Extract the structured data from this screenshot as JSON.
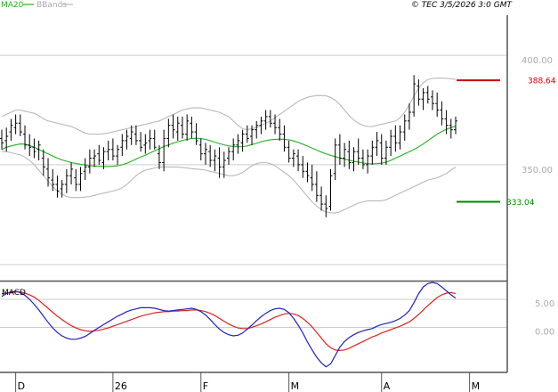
{
  "header": {
    "legend_ma": "MA20",
    "legend_bb": "BBands",
    "copyright": "© TEC 3/5/2026 3:0 GMT"
  },
  "colors": {
    "price_bars": "#000000",
    "ma": "#20b020",
    "bands": "#b8b8b8",
    "resistance": "#cc0000",
    "support": "#008800",
    "macd_line": "#2222bb",
    "signal_line": "#dd2222",
    "grid": "#cccccc",
    "frame": "#555555"
  },
  "chart_data": [
    {
      "type": "ohlc",
      "name": "price",
      "y_ticks": [
        {
          "value": 400,
          "label": "400.00"
        },
        {
          "value": 350,
          "label": "350.00"
        }
      ],
      "ylim": [
        297,
        418
      ],
      "levels": [
        {
          "name": "resistance",
          "value": 388.64,
          "label": "388.64"
        },
        {
          "name": "support",
          "value": 333.04,
          "label": "333.04"
        }
      ],
      "x_labels": [
        {
          "index": 3,
          "label": "D"
        },
        {
          "index": 24,
          "label": "26"
        },
        {
          "index": 43,
          "label": "F"
        },
        {
          "index": 62,
          "label": "M"
        },
        {
          "index": 82,
          "label": "A"
        },
        {
          "index": 101,
          "label": "M"
        }
      ],
      "ohlc": [
        [
          362.0,
          366.0,
          357.0,
          360.0
        ],
        [
          361.0,
          367.0,
          356.0,
          363.0
        ],
        [
          365.0,
          371.0,
          361.0,
          368.0
        ],
        [
          367.0,
          373.0,
          364.0,
          369.0
        ],
        [
          369.0,
          373.0,
          363.0,
          365.0
        ],
        [
          364.0,
          368.0,
          357.0,
          359.0
        ],
        [
          359.0,
          364.0,
          354.0,
          358.0
        ],
        [
          358.0,
          362.0,
          353.0,
          356.0
        ],
        [
          357.0,
          361.0,
          352.0,
          359.0
        ],
        [
          353.0,
          357.0,
          345.0,
          349.0
        ],
        [
          348.0,
          353.0,
          340.0,
          344.0
        ],
        [
          343.0,
          348.0,
          338.0,
          341.0
        ],
        [
          341.0,
          345.0,
          335.0,
          338.0
        ],
        [
          339.0,
          343.0,
          335.0,
          341.0
        ],
        [
          341.0,
          348.0,
          337.0,
          345.0
        ],
        [
          345.0,
          351.0,
          341.0,
          348.0
        ],
        [
          344.0,
          348.0,
          338.0,
          341.0
        ],
        [
          341.0,
          349.0,
          338.0,
          346.0
        ],
        [
          347.0,
          353.0,
          343.0,
          349.0
        ],
        [
          349.0,
          357.0,
          346.0,
          353.0
        ],
        [
          353.0,
          357.0,
          349.0,
          354.0
        ],
        [
          355.0,
          359.0,
          350.0,
          352.0
        ],
        [
          351.0,
          358.0,
          348.0,
          356.0
        ],
        [
          356.0,
          361.0,
          352.0,
          357.0
        ],
        [
          357.0,
          362.0,
          352.0,
          354.0
        ],
        [
          354.0,
          359.0,
          350.0,
          357.0
        ],
        [
          358.0,
          364.0,
          354.0,
          361.0
        ],
        [
          361.0,
          366.0,
          357.0,
          363.0
        ],
        [
          362.0,
          368.0,
          359.0,
          365.0
        ],
        [
          364.0,
          368.0,
          359.0,
          361.0
        ],
        [
          361.0,
          365.0,
          356.0,
          358.0
        ],
        [
          359.0,
          364.0,
          355.0,
          360.0
        ],
        [
          361.0,
          366.0,
          357.0,
          362.0
        ],
        [
          362.0,
          366.0,
          357.0,
          358.0
        ],
        [
          355.0,
          359.0,
          348.0,
          351.0
        ],
        [
          351.0,
          366.0,
          347.0,
          362.0
        ],
        [
          362.0,
          371.0,
          358.0,
          368.0
        ],
        [
          368.0,
          373.0,
          362.0,
          366.0
        ],
        [
          365.0,
          372.0,
          361.0,
          369.0
        ],
        [
          368.0,
          372.0,
          362.0,
          364.0
        ],
        [
          364.0,
          373.0,
          361.0,
          370.0
        ],
        [
          369.0,
          372.0,
          362.0,
          365.0
        ],
        [
          365.0,
          369.0,
          359.0,
          361.0
        ],
        [
          359.0,
          362.0,
          352.0,
          355.0
        ],
        [
          355.0,
          360.0,
          350.0,
          357.0
        ],
        [
          356.0,
          359.0,
          349.0,
          352.0
        ],
        [
          352.0,
          357.0,
          347.0,
          354.0
        ],
        [
          353.0,
          358.0,
          344.0,
          349.0
        ],
        [
          349.0,
          356.0,
          344.0,
          352.0
        ],
        [
          353.0,
          358.0,
          350.0,
          356.0
        ],
        [
          356.0,
          362.0,
          352.0,
          359.0
        ],
        [
          359.0,
          364.0,
          355.0,
          361.0
        ],
        [
          360.0,
          366.0,
          356.0,
          364.0
        ],
        [
          364.0,
          368.0,
          360.0,
          362.0
        ],
        [
          363.0,
          368.0,
          359.0,
          366.0
        ],
        [
          366.0,
          370.0,
          362.0,
          368.0
        ],
        [
          368.0,
          372.0,
          364.0,
          370.0
        ],
        [
          370.0,
          375.0,
          366.0,
          372.0
        ],
        [
          372.0,
          375.0,
          367.0,
          369.0
        ],
        [
          369.0,
          373.0,
          364.0,
          367.0
        ],
        [
          367.0,
          371.0,
          361.0,
          364.0
        ],
        [
          364.0,
          368.0,
          356.0,
          358.0
        ],
        [
          358.0,
          361.0,
          351.0,
          353.0
        ],
        [
          353.0,
          357.0,
          349.0,
          355.0
        ],
        [
          354.0,
          357.0,
          347.0,
          350.0
        ],
        [
          350.0,
          354.0,
          344.0,
          347.0
        ],
        [
          347.0,
          351.0,
          342.0,
          345.0
        ],
        [
          344.0,
          350.0,
          338.0,
          341.0
        ],
        [
          341.0,
          347.0,
          333.0,
          336.0
        ],
        [
          336.0,
          340.0,
          329.0,
          332.0
        ],
        [
          332.0,
          336.0,
          326.0,
          330.0
        ],
        [
          331.0,
          348.0,
          329.0,
          345.0
        ],
        [
          346.0,
          362.0,
          343.0,
          359.0
        ],
        [
          359.0,
          364.0,
          350.0,
          353.0
        ],
        [
          353.0,
          360.0,
          349.0,
          357.0
        ],
        [
          356.0,
          361.0,
          348.0,
          351.0
        ],
        [
          351.0,
          358.0,
          347.0,
          356.0
        ],
        [
          356.0,
          362.0,
          350.0,
          353.0
        ],
        [
          353.0,
          357.0,
          348.0,
          350.0
        ],
        [
          350.0,
          357.0,
          346.0,
          354.0
        ],
        [
          354.0,
          361.0,
          350.0,
          358.0
        ],
        [
          358.0,
          365.0,
          354.0,
          361.0
        ],
        [
          360.0,
          364.0,
          350.0,
          353.0
        ],
        [
          353.0,
          361.0,
          350.0,
          358.0
        ],
        [
          358.0,
          366.0,
          354.0,
          363.0
        ],
        [
          363.0,
          368.0,
          356.0,
          360.0
        ],
        [
          360.0,
          368.0,
          357.0,
          365.0
        ],
        [
          365.0,
          373.0,
          361.0,
          370.0
        ],
        [
          370.0,
          378.0,
          366.0,
          374.0
        ],
        [
          374.0,
          391.0,
          372.0,
          387.0
        ],
        [
          386.0,
          389.0,
          377.0,
          380.0
        ],
        [
          380.0,
          385.0,
          375.0,
          383.0
        ],
        [
          383.0,
          386.0,
          378.0,
          380.0
        ],
        [
          381.0,
          384.0,
          375.0,
          378.0
        ],
        [
          378.0,
          383.0,
          372.0,
          375.0
        ],
        [
          375.0,
          379.0,
          368.0,
          371.0
        ],
        [
          371.0,
          375.0,
          364.0,
          368.0
        ],
        [
          368.0,
          371.0,
          362.0,
          366.0
        ],
        [
          366.0,
          372.0,
          364.0,
          370.0
        ]
      ],
      "ma20": [
        357.0,
        358.0,
        358.6,
        359.1,
        359.5,
        359.4,
        358.8,
        358.0,
        357.0,
        356.0,
        355.0,
        354.0,
        353.0,
        352.2,
        351.6,
        351.0,
        350.6,
        350.2,
        349.9,
        349.6,
        349.4,
        349.3,
        349.2,
        349.2,
        349.3,
        349.5,
        350.0,
        350.7,
        351.6,
        352.6,
        353.5,
        354.4,
        355.4,
        356.4,
        357.3,
        358.3,
        359.0,
        359.9,
        360.5,
        361.1,
        361.6,
        362.0,
        362.1,
        362.0,
        361.6,
        361.0,
        360.3,
        359.7,
        359.1,
        358.6,
        358.3,
        358.2,
        358.3,
        358.6,
        359.2,
        359.8,
        360.5,
        361.0,
        361.4,
        361.6,
        361.7,
        361.6,
        361.4,
        360.9,
        360.2,
        359.4,
        358.5,
        357.6,
        356.7,
        355.8,
        355.0,
        354.3,
        353.7,
        353.1,
        352.6,
        352.1,
        351.6,
        351.2,
        350.8,
        350.5,
        350.4,
        350.5,
        350.7,
        351.2,
        352.0,
        353.0,
        354.0,
        355.0,
        356.0,
        357.0,
        358.2,
        359.5,
        361.0,
        362.5,
        364.0,
        365.2,
        366.2,
        367.0,
        367.6
      ],
      "bb_upper": [
        372.0,
        373.0,
        374.0,
        375.0,
        375.0,
        374.5,
        374.0,
        373.5,
        372.5,
        371.0,
        370.0,
        369.5,
        369.0,
        368.5,
        368.0,
        367.5,
        366.5,
        365.5,
        364.5,
        364.0,
        364.0,
        364.0,
        364.2,
        364.5,
        365.0,
        365.5,
        366.0,
        366.5,
        367.0,
        367.5,
        368.0,
        368.5,
        369.0,
        369.5,
        370.0,
        371.0,
        372.0,
        373.0,
        374.0,
        375.0,
        375.5,
        376.0,
        376.0,
        376.0,
        375.5,
        375.0,
        374.5,
        374.0,
        373.0,
        372.0,
        370.0,
        368.0,
        366.5,
        366.0,
        366.5,
        367.0,
        368.0,
        369.0,
        370.0,
        371.5,
        373.0,
        374.5,
        376.0,
        377.5,
        379.0,
        380.0,
        380.8,
        381.3,
        381.6,
        381.7,
        381.5,
        380.8,
        379.5,
        377.5,
        375.0,
        372.5,
        370.5,
        369.0,
        368.0,
        367.5,
        367.5,
        368.0,
        368.5,
        369.0,
        369.5,
        370.0,
        371.5,
        374.0,
        377.5,
        381.5,
        385.0,
        387.5,
        389.0,
        389.5,
        389.6,
        389.6,
        389.5,
        389.3,
        389.0
      ],
      "bb_lower": [
        356.0,
        356.0,
        355.5,
        355.0,
        354.5,
        353.5,
        352.0,
        350.0,
        347.5,
        345.0,
        342.5,
        340.0,
        338.0,
        336.5,
        335.5,
        335.0,
        335.0,
        335.0,
        335.2,
        335.5,
        336.0,
        336.5,
        337.0,
        337.5,
        338.0,
        338.5,
        339.5,
        341.0,
        343.0,
        345.0,
        346.5,
        347.5,
        348.0,
        348.5,
        349.0,
        349.0,
        349.0,
        349.0,
        349.0,
        348.8,
        348.5,
        348.2,
        348.0,
        347.8,
        347.5,
        347.0,
        346.5,
        346.0,
        345.5,
        345.0,
        345.0,
        345.5,
        346.5,
        348.0,
        349.5,
        350.5,
        351.0,
        351.0,
        350.5,
        349.5,
        348.0,
        346.5,
        345.0,
        343.0,
        340.5,
        338.0,
        335.5,
        333.0,
        331.0,
        329.5,
        328.5,
        328.0,
        328.0,
        328.5,
        329.5,
        330.5,
        331.5,
        332.5,
        333.0,
        333.5,
        333.5,
        333.5,
        333.5,
        334.0,
        335.0,
        336.0,
        337.0,
        338.0,
        339.0,
        340.0,
        341.0,
        342.0,
        343.0,
        343.5,
        344.0,
        345.0,
        346.0,
        347.5,
        349.0
      ]
    },
    {
      "type": "line",
      "name": "macd",
      "title": "MACD",
      "y_ticks": [
        {
          "value": 5,
          "label": "5.00"
        },
        {
          "value": 0,
          "label": "0.00"
        }
      ],
      "ylim": [
        -8,
        8
      ],
      "series": [
        {
          "key": "macd",
          "values": [
            5.5,
            6.0,
            6.3,
            6.4,
            6.2,
            5.7,
            5.0,
            4.1,
            3.1,
            2.0,
            0.9,
            -0.1,
            -0.9,
            -1.5,
            -1.9,
            -2.1,
            -2.1,
            -1.9,
            -1.6,
            -1.1,
            -0.5,
            0.0,
            0.5,
            1.0,
            1.5,
            2.0,
            2.4,
            2.8,
            3.1,
            3.3,
            3.5,
            3.5,
            3.5,
            3.4,
            3.2,
            3.0,
            2.9,
            3.0,
            3.1,
            3.2,
            3.3,
            3.4,
            3.2,
            2.8,
            2.2,
            1.4,
            0.5,
            -0.3,
            -0.9,
            -1.3,
            -1.5,
            -1.4,
            -1.0,
            -0.3,
            0.4,
            1.2,
            1.9,
            2.5,
            3.0,
            3.3,
            3.4,
            3.2,
            2.6,
            1.6,
            0.4,
            -1.0,
            -2.6,
            -4.0,
            -5.3,
            -6.3,
            -7.0,
            -6.5,
            -5.0,
            -3.5,
            -2.5,
            -1.8,
            -1.3,
            -0.9,
            -0.6,
            -0.4,
            -0.2,
            0.2,
            0.5,
            0.7,
            0.9,
            1.2,
            1.6,
            2.2,
            3.0,
            4.4,
            6.0,
            7.2,
            7.8,
            8.0,
            7.8,
            7.2,
            6.5,
            5.8,
            5.2
          ]
        },
        {
          "key": "signal",
          "values": [
            6.0,
            6.1,
            6.2,
            6.3,
            6.3,
            6.1,
            5.8,
            5.4,
            4.8,
            4.1,
            3.4,
            2.7,
            2.0,
            1.4,
            0.8,
            0.3,
            -0.1,
            -0.4,
            -0.6,
            -0.7,
            -0.6,
            -0.5,
            -0.3,
            -0.1,
            0.2,
            0.5,
            0.8,
            1.1,
            1.4,
            1.7,
            2.0,
            2.2,
            2.4,
            2.6,
            2.7,
            2.8,
            2.8,
            2.9,
            2.9,
            3.0,
            3.0,
            3.1,
            3.1,
            3.0,
            2.8,
            2.5,
            2.1,
            1.6,
            1.1,
            0.6,
            0.2,
            -0.1,
            -0.2,
            -0.2,
            0.0,
            0.3,
            0.6,
            1.0,
            1.4,
            1.8,
            2.1,
            2.4,
            2.5,
            2.4,
            2.1,
            1.6,
            0.9,
            0.1,
            -0.9,
            -1.9,
            -2.9,
            -3.6,
            -4.0,
            -4.1,
            -4.0,
            -3.7,
            -3.3,
            -2.9,
            -2.5,
            -2.1,
            -1.7,
            -1.4,
            -1.0,
            -0.7,
            -0.4,
            -0.1,
            0.2,
            0.6,
            1.0,
            1.6,
            2.3,
            3.1,
            3.9,
            4.6,
            5.3,
            5.8,
            6.1,
            6.2,
            6.0
          ]
        }
      ]
    }
  ]
}
